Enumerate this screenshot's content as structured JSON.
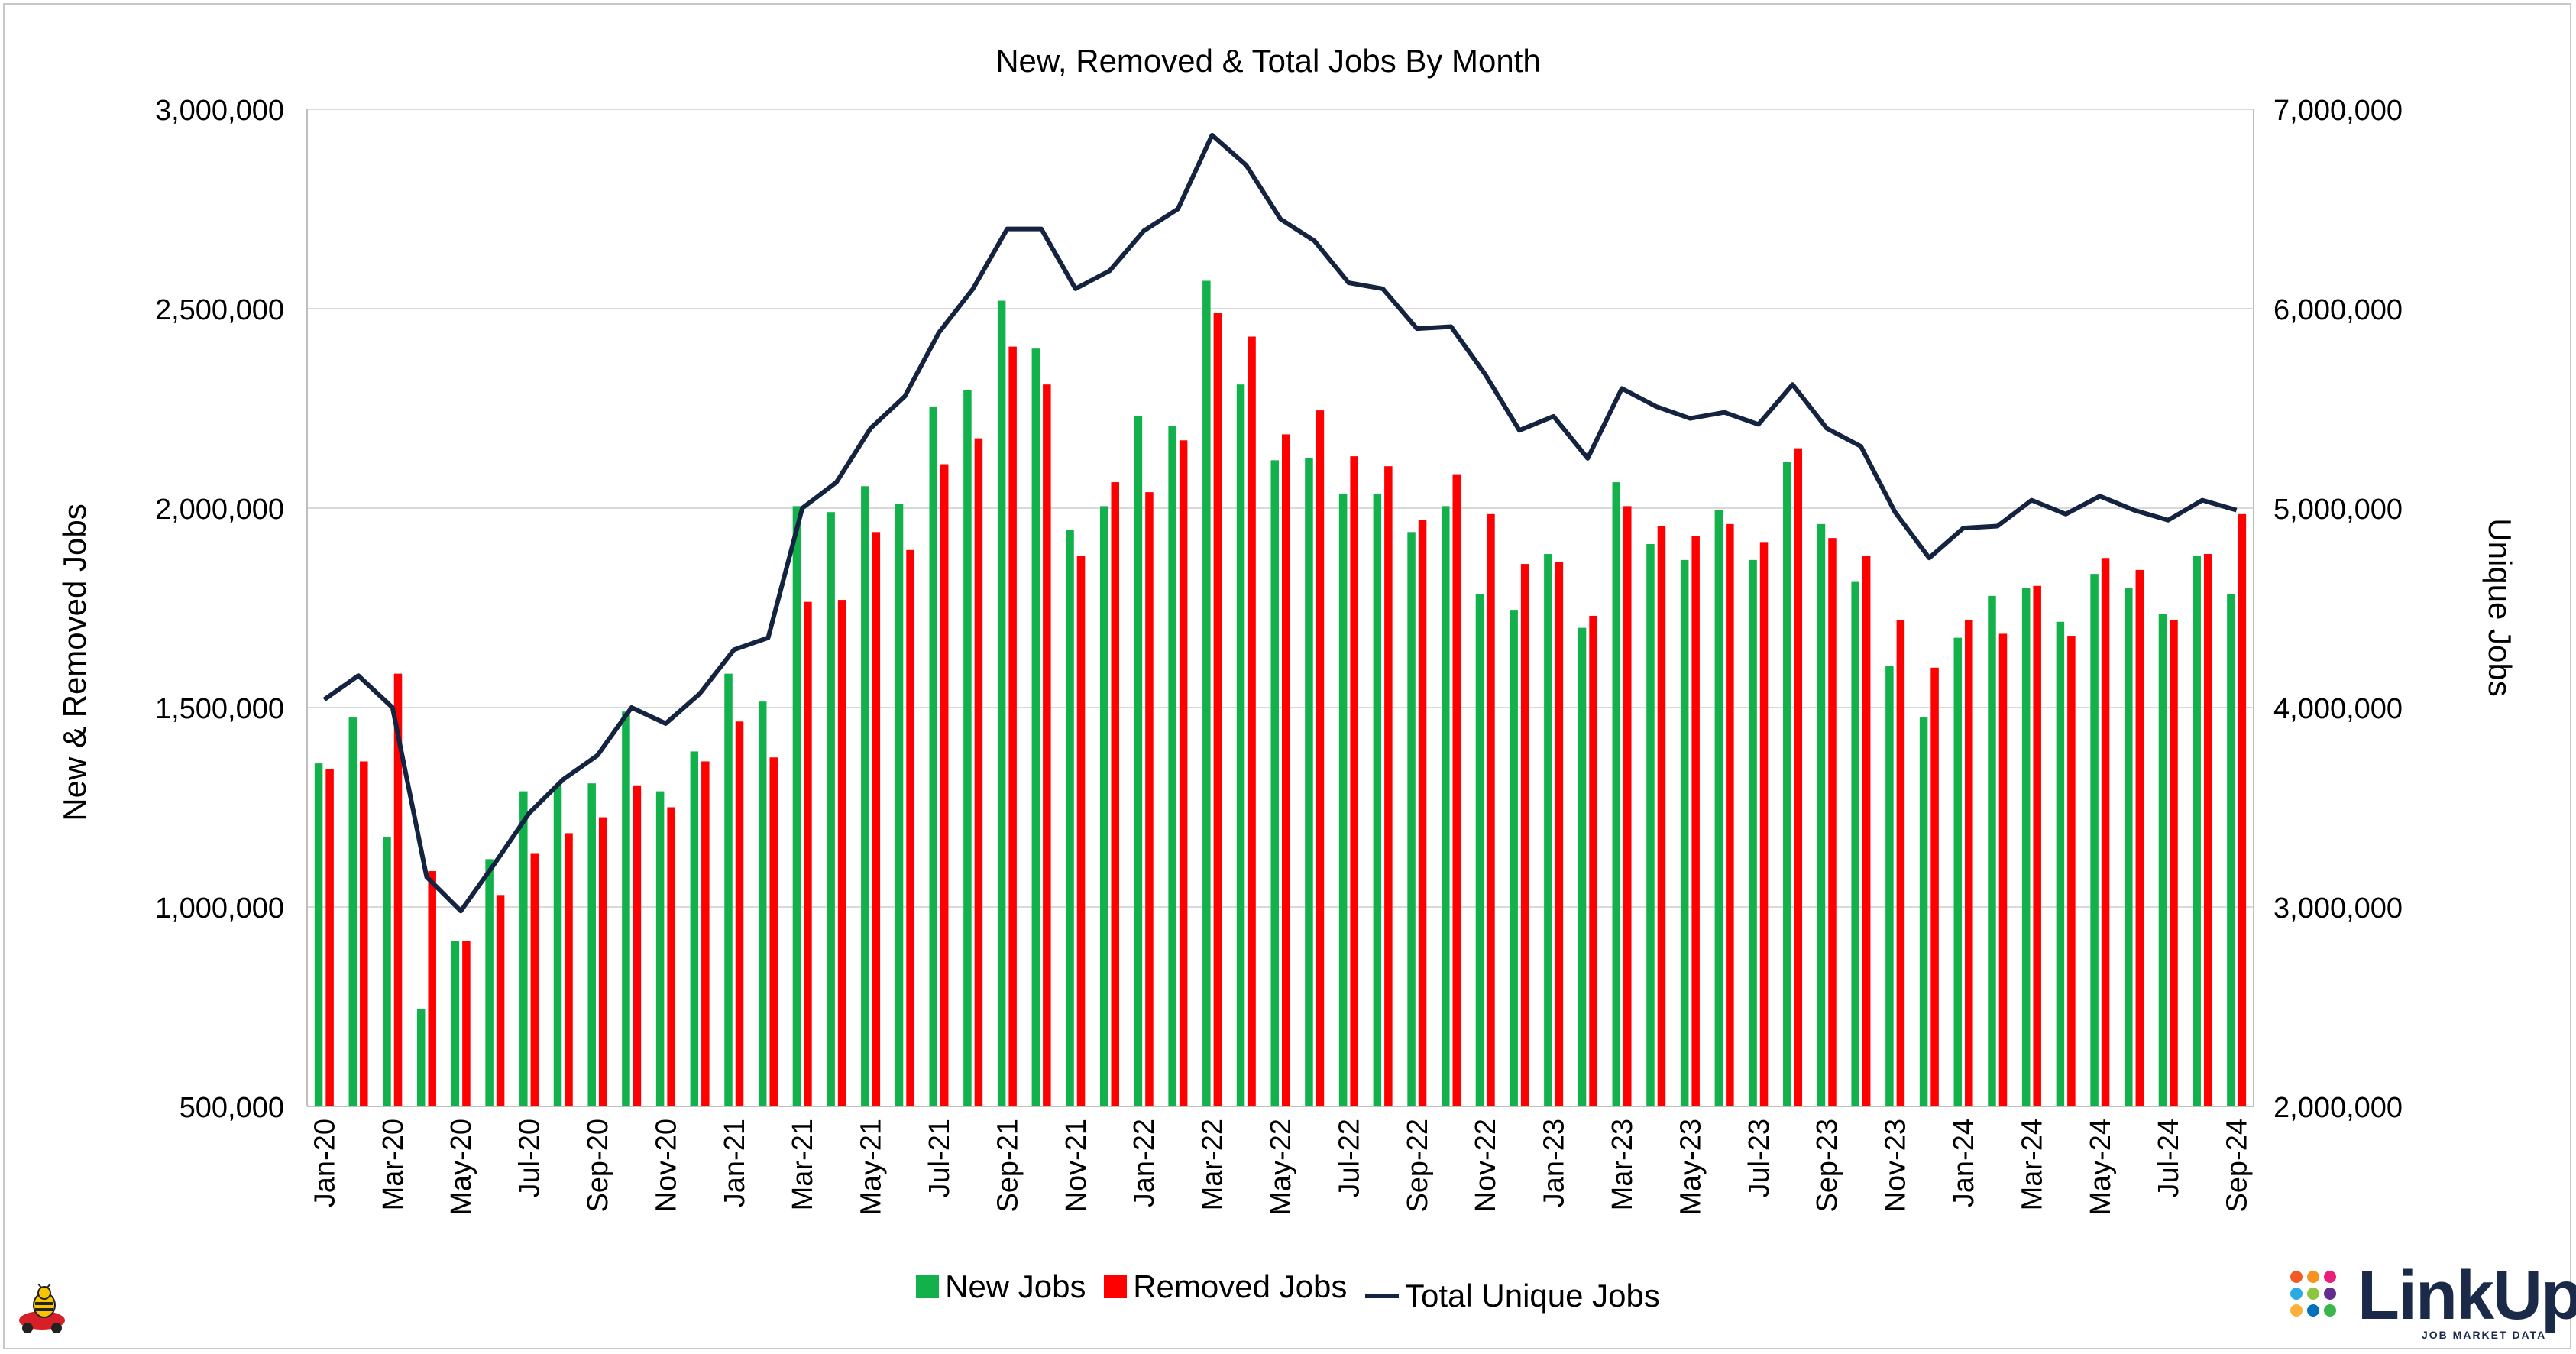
{
  "colors": {
    "new_jobs": "#13b14b",
    "removed_jobs": "#ff0000",
    "total_unique": "#14233f",
    "grid": "#d9d9d9",
    "brand": "#1b2a48"
  },
  "legend": {
    "new_jobs": "New Jobs",
    "removed_jobs": "Removed Jobs",
    "total_unique": "Total Unique Jobs"
  },
  "brand": {
    "name": "LinkUp",
    "tagline": "JOB MARKET DATA",
    "logo_icon": "dots-grid-icon",
    "mascot_icon": "bee-car-icon"
  },
  "chart_data": {
    "type": "bar",
    "title": "New, Removed & Total Jobs By Month",
    "ylabel": "New & Removed Jobs",
    "y2label": "Unique Jobs",
    "ylim": [
      500000,
      3000000
    ],
    "y2lim": [
      2000000,
      7000000
    ],
    "yticks": [
      "500,000",
      "1,000,000",
      "1,500,000",
      "2,000,000",
      "2,500,000",
      "3,000,000"
    ],
    "y2ticks": [
      "2,000,000",
      "3,000,000",
      "4,000,000",
      "5,000,000",
      "6,000,000",
      "7,000,000"
    ],
    "grid": true,
    "legend_position": "bottom",
    "categories": [
      "Jan-20",
      "Feb-20",
      "Mar-20",
      "Apr-20",
      "May-20",
      "Jun-20",
      "Jul-20",
      "Aug-20",
      "Sep-20",
      "Oct-20",
      "Nov-20",
      "Dec-20",
      "Jan-21",
      "Feb-21",
      "Mar-21",
      "Apr-21",
      "May-21",
      "Jun-21",
      "Jul-21",
      "Aug-21",
      "Sep-21",
      "Oct-21",
      "Nov-21",
      "Dec-21",
      "Jan-22",
      "Feb-22",
      "Mar-22",
      "Apr-22",
      "May-22",
      "Jun-22",
      "Jul-22",
      "Aug-22",
      "Sep-22",
      "Oct-22",
      "Nov-22",
      "Dec-22",
      "Jan-23",
      "Feb-23",
      "Mar-23",
      "Apr-23",
      "May-23",
      "Jun-23",
      "Jul-23",
      "Aug-23",
      "Sep-23",
      "Oct-23",
      "Nov-23",
      "Dec-23",
      "Jan-24",
      "Feb-24",
      "Mar-24",
      "Apr-24",
      "May-24",
      "Jun-24",
      "Jul-24",
      "Aug-24",
      "Sep-24"
    ],
    "xtick_labels": [
      "Jan-20",
      "Mar-20",
      "May-20",
      "Jul-20",
      "Sep-20",
      "Nov-20",
      "Jan-21",
      "Mar-21",
      "May-21",
      "Jul-21",
      "Sep-21",
      "Nov-21",
      "Jan-22",
      "Mar-22",
      "May-22",
      "Jul-22",
      "Sep-22",
      "Nov-22",
      "Jan-23",
      "Mar-23",
      "May-23",
      "Jul-23",
      "Sep-23",
      "Nov-23",
      "Jan-24",
      "Mar-24",
      "May-24",
      "Jul-24",
      "Sep-24"
    ],
    "series": [
      {
        "name": "New Jobs",
        "axis": "left",
        "type": "bar",
        "values": [
          1360000,
          1475000,
          1175000,
          745000,
          915000,
          1120000,
          1290000,
          1305000,
          1310000,
          1490000,
          1290000,
          1390000,
          1585000,
          1515000,
          2005000,
          1990000,
          2055000,
          2010000,
          2255000,
          2295000,
          2520000,
          2400000,
          1945000,
          2005000,
          2230000,
          2205000,
          2570000,
          2310000,
          2120000,
          2125000,
          2035000,
          2035000,
          1940000,
          2005000,
          1785000,
          1745000,
          1885000,
          1700000,
          2065000,
          1910000,
          1870000,
          1995000,
          1870000,
          2115000,
          1960000,
          1815000,
          1605000,
          1475000,
          1675000,
          1780000,
          1800000,
          1715000,
          1835000,
          1800000,
          1735000,
          1880000,
          1785000
        ]
      },
      {
        "name": "Removed Jobs",
        "axis": "left",
        "type": "bar",
        "values": [
          1345000,
          1365000,
          1585000,
          1090000,
          915000,
          1030000,
          1135000,
          1185000,
          1225000,
          1305000,
          1250000,
          1365000,
          1465000,
          1375000,
          1765000,
          1770000,
          1940000,
          1895000,
          2110000,
          2175000,
          2405000,
          2310000,
          1880000,
          2065000,
          2040000,
          2170000,
          2490000,
          2430000,
          2185000,
          2245000,
          2130000,
          2105000,
          1970000,
          2085000,
          1985000,
          1860000,
          1865000,
          1730000,
          2005000,
          1955000,
          1930000,
          1960000,
          1915000,
          2150000,
          1925000,
          1880000,
          1720000,
          1600000,
          1720000,
          1685000,
          1805000,
          1680000,
          1875000,
          1845000,
          1720000,
          1885000,
          1985000
        ]
      },
      {
        "name": "Total Unique Jobs",
        "axis": "right",
        "type": "line",
        "values": [
          4040000,
          4160000,
          4000000,
          3150000,
          2980000,
          3220000,
          3470000,
          3640000,
          3760000,
          4000000,
          3920000,
          4070000,
          4290000,
          4350000,
          5000000,
          5130000,
          5400000,
          5560000,
          5880000,
          6100000,
          6400000,
          6400000,
          6100000,
          6190000,
          6390000,
          6500000,
          6870000,
          6720000,
          6450000,
          6340000,
          6130000,
          6100000,
          5900000,
          5910000,
          5670000,
          5390000,
          5460000,
          5250000,
          5600000,
          5510000,
          5450000,
          5480000,
          5420000,
          5620000,
          5400000,
          5310000,
          4980000,
          4750000,
          4900000,
          4910000,
          5040000,
          4970000,
          5060000,
          4990000,
          4940000,
          5040000,
          4990000
        ]
      }
    ]
  }
}
